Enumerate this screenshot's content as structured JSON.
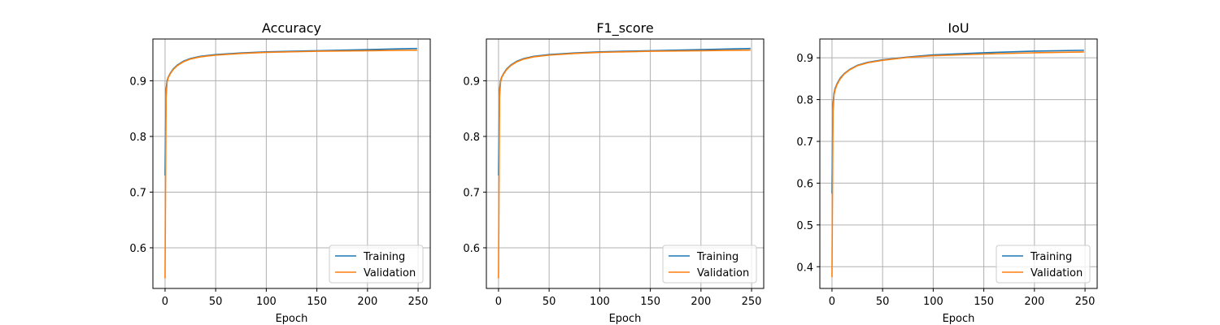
{
  "chart_data": [
    {
      "type": "line",
      "title": "Accuracy",
      "xlabel": "Epoch",
      "ylabel": "",
      "xlim": [
        -12,
        262
      ],
      "ylim": [
        0.527,
        0.975
      ],
      "xticks": [
        0,
        50,
        100,
        150,
        200,
        250
      ],
      "yticks": [
        0.6,
        0.7,
        0.8,
        0.9
      ],
      "grid": true,
      "legend_position": "lower right",
      "series": [
        {
          "name": "Training",
          "color": "#1f77b4",
          "x": [
            0,
            1,
            2,
            3,
            5,
            8,
            12,
            18,
            25,
            35,
            50,
            75,
            100,
            150,
            200,
            249
          ],
          "y": [
            0.73,
            0.885,
            0.9,
            0.906,
            0.913,
            0.921,
            0.928,
            0.935,
            0.94,
            0.944,
            0.947,
            0.95,
            0.952,
            0.954,
            0.956,
            0.958
          ]
        },
        {
          "name": "Validation",
          "color": "#ff7f0e",
          "x": [
            0,
            1,
            2,
            3,
            5,
            8,
            12,
            18,
            25,
            35,
            50,
            75,
            100,
            150,
            200,
            249
          ],
          "y": [
            0.545,
            0.87,
            0.897,
            0.905,
            0.912,
            0.92,
            0.927,
            0.934,
            0.939,
            0.943,
            0.946,
            0.949,
            0.951,
            0.953,
            0.954,
            0.955
          ]
        }
      ]
    },
    {
      "type": "line",
      "title": "F1_score",
      "xlabel": "Epoch",
      "ylabel": "",
      "xlim": [
        -12,
        262
      ],
      "ylim": [
        0.527,
        0.975
      ],
      "xticks": [
        0,
        50,
        100,
        150,
        200,
        250
      ],
      "yticks": [
        0.6,
        0.7,
        0.8,
        0.9
      ],
      "grid": true,
      "legend_position": "lower right",
      "series": [
        {
          "name": "Training",
          "color": "#1f77b4",
          "x": [
            0,
            1,
            2,
            3,
            5,
            8,
            12,
            18,
            25,
            35,
            50,
            75,
            100,
            150,
            200,
            249
          ],
          "y": [
            0.73,
            0.885,
            0.9,
            0.906,
            0.913,
            0.921,
            0.928,
            0.935,
            0.94,
            0.944,
            0.947,
            0.95,
            0.952,
            0.954,
            0.956,
            0.958
          ]
        },
        {
          "name": "Validation",
          "color": "#ff7f0e",
          "x": [
            0,
            1,
            2,
            3,
            5,
            8,
            12,
            18,
            25,
            35,
            50,
            75,
            100,
            150,
            200,
            249
          ],
          "y": [
            0.545,
            0.87,
            0.897,
            0.905,
            0.912,
            0.92,
            0.927,
            0.934,
            0.939,
            0.943,
            0.946,
            0.949,
            0.951,
            0.953,
            0.954,
            0.955
          ]
        }
      ]
    },
    {
      "type": "line",
      "title": "IoU",
      "xlabel": "Epoch",
      "ylabel": "",
      "xlim": [
        -12,
        262
      ],
      "ylim": [
        0.348,
        0.945
      ],
      "xticks": [
        0,
        50,
        100,
        150,
        200,
        250
      ],
      "yticks": [
        0.4,
        0.5,
        0.6,
        0.7,
        0.8,
        0.9
      ],
      "grid": true,
      "legend_position": "lower right",
      "series": [
        {
          "name": "Training",
          "color": "#1f77b4",
          "x": [
            0,
            1,
            2,
            3,
            5,
            8,
            12,
            18,
            25,
            35,
            50,
            75,
            100,
            150,
            200,
            249
          ],
          "y": [
            0.575,
            0.79,
            0.815,
            0.826,
            0.838,
            0.851,
            0.862,
            0.873,
            0.882,
            0.889,
            0.895,
            0.902,
            0.907,
            0.912,
            0.916,
            0.918
          ]
        },
        {
          "name": "Validation",
          "color": "#ff7f0e",
          "x": [
            0,
            1,
            2,
            3,
            5,
            8,
            12,
            18,
            25,
            35,
            50,
            75,
            100,
            150,
            200,
            249
          ],
          "y": [
            0.375,
            0.77,
            0.81,
            0.823,
            0.836,
            0.849,
            0.861,
            0.872,
            0.881,
            0.888,
            0.894,
            0.901,
            0.905,
            0.909,
            0.912,
            0.914
          ]
        }
      ]
    }
  ]
}
